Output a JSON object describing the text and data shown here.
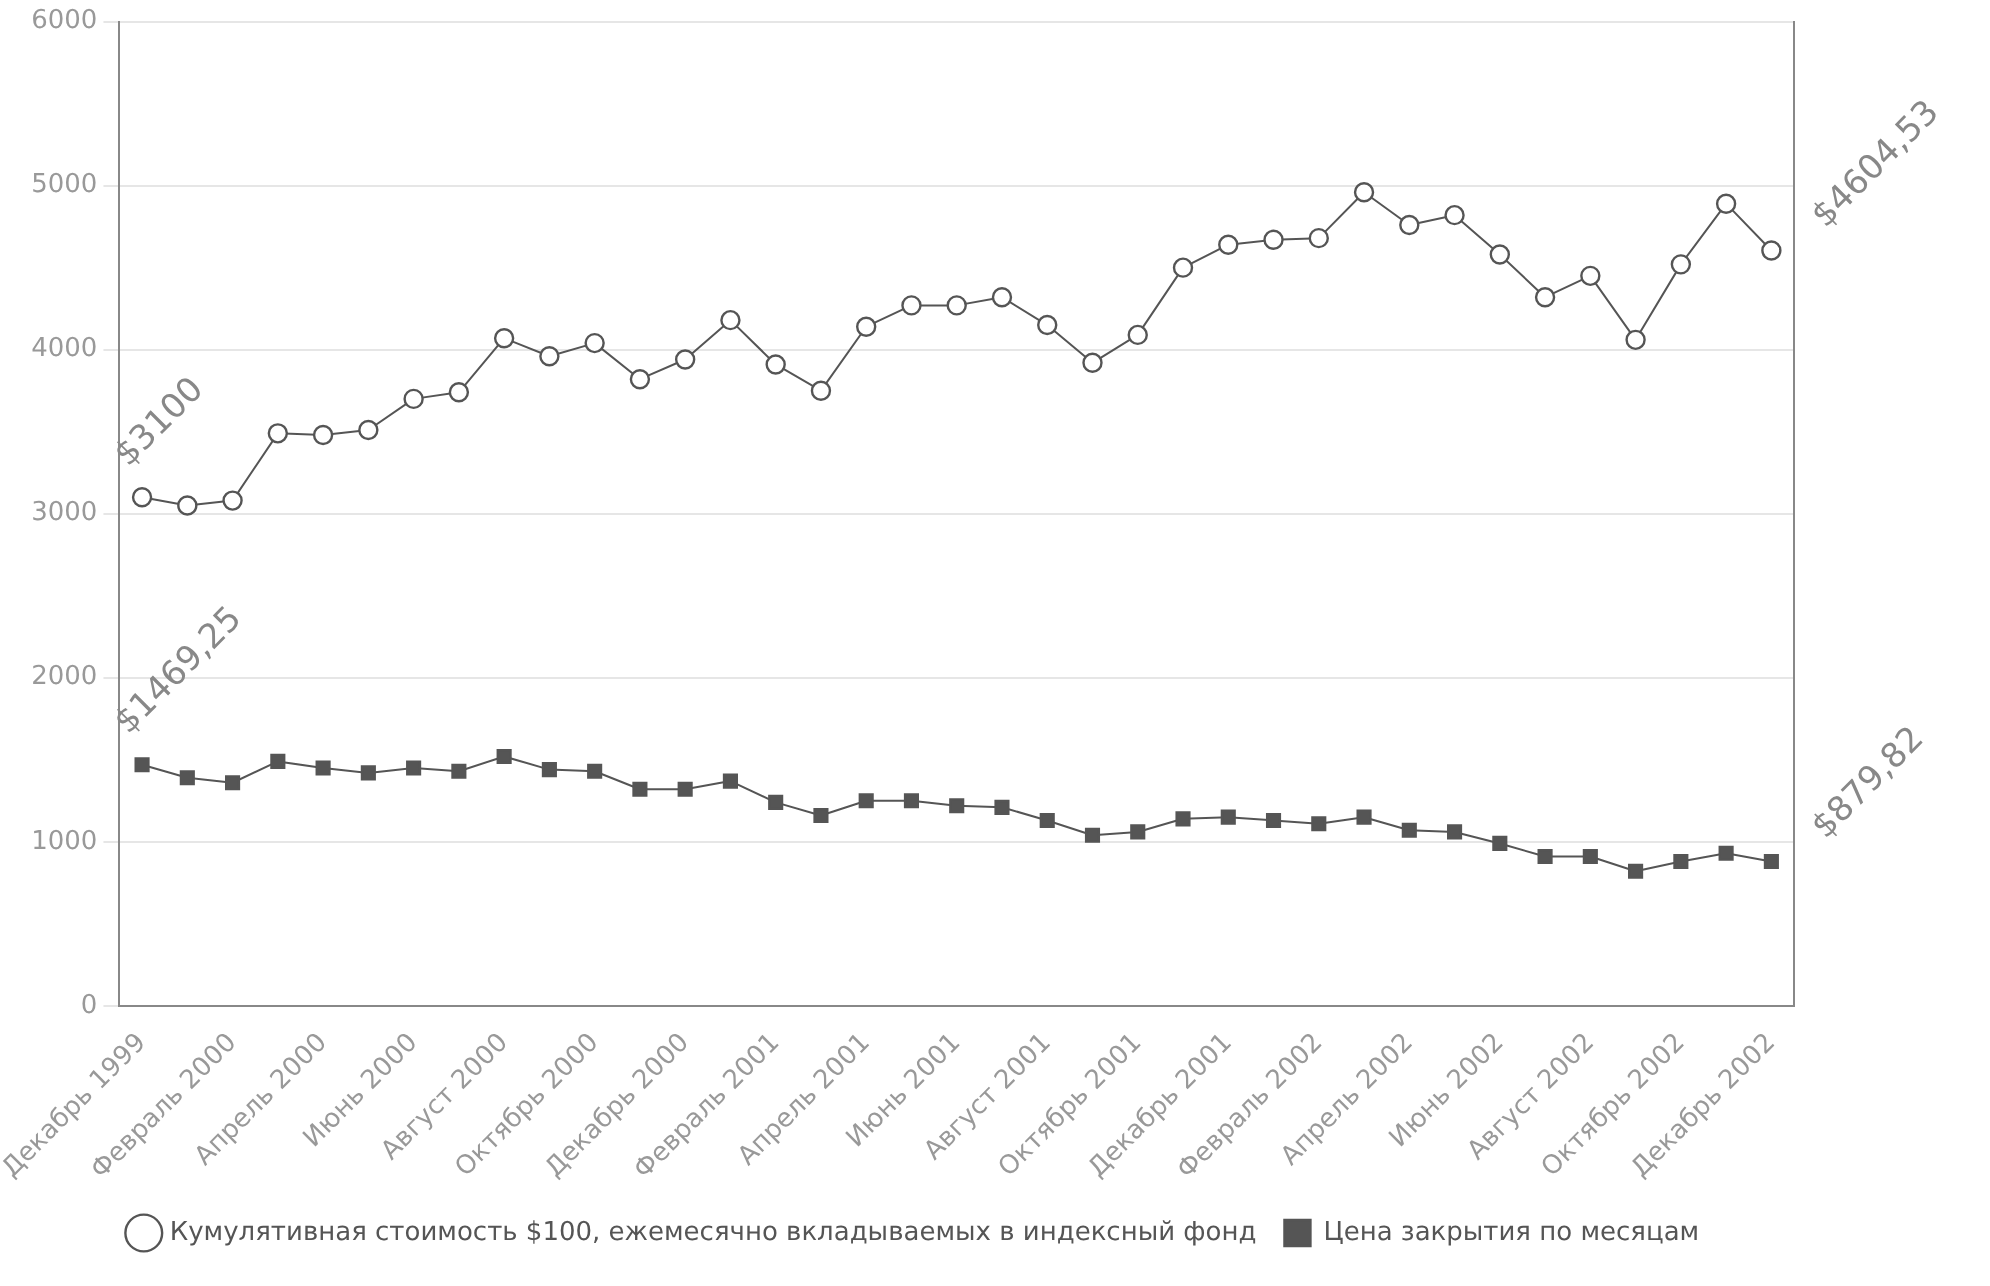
{
  "chart_data": {
    "type": "line",
    "categories": [
      "Декабрь 1999",
      null,
      "Февраль 2000",
      null,
      "Апрель 2000",
      null,
      "Июнь 2000",
      null,
      "Август 2000",
      null,
      "Октябрь 2000",
      null,
      "Декабрь 2000",
      null,
      "Февраль 2001",
      null,
      "Апрель 2001",
      null,
      "Июнь 2001",
      null,
      "Август 2001",
      null,
      "Октябрь 2001",
      null,
      "Декабрь 2001",
      null,
      "Февраль 2002",
      null,
      "Апрель 2002",
      null,
      "Июнь 2002",
      null,
      "Август 2002",
      null,
      "Октябрь 2002",
      null,
      "Декабрь 2002"
    ],
    "series": [
      {
        "name": "Кумулятивная стоимость $100, ежемесячно вкладываемых в индексный фонд",
        "color": "#555555",
        "marker": "circle",
        "values": [
          3100,
          3050,
          3080,
          3490,
          3480,
          3510,
          3700,
          3740,
          4070,
          3960,
          4040,
          3820,
          3940,
          4180,
          3910,
          3750,
          4140,
          4270,
          4270,
          4320,
          4150,
          3920,
          4090,
          4500,
          4640,
          4670,
          4680,
          4960,
          4760,
          4820,
          4580,
          4320,
          4450,
          4060,
          4520,
          4890,
          4604.53
        ],
        "value_labels": [
          "$3100",
          null,
          null,
          null,
          null,
          null,
          null,
          null,
          null,
          null,
          null,
          null,
          null,
          null,
          null,
          null,
          null,
          null,
          null,
          null,
          null,
          null,
          null,
          null,
          null,
          null,
          null,
          null,
          null,
          null,
          null,
          null,
          null,
          null,
          null,
          null,
          "$4604,53"
        ]
      },
      {
        "name": "Цена закрытия по месяцам",
        "color": "#555555",
        "marker": "square",
        "values": [
          1469.25,
          1390,
          1360,
          1490,
          1450,
          1420,
          1450,
          1430,
          1520,
          1440,
          1430,
          1320,
          1320,
          1370,
          1240,
          1160,
          1250,
          1250,
          1220,
          1210,
          1130,
          1040,
          1060,
          1140,
          1150,
          1130,
          1110,
          1150,
          1070,
          1060,
          990,
          910,
          910,
          820,
          880,
          930,
          879.82
        ],
        "value_labels": [
          "$1469,25",
          null,
          null,
          null,
          null,
          null,
          null,
          null,
          null,
          null,
          null,
          null,
          null,
          null,
          null,
          null,
          null,
          null,
          null,
          null,
          null,
          null,
          null,
          null,
          null,
          null,
          null,
          null,
          null,
          null,
          null,
          null,
          null,
          null,
          null,
          null,
          "$879,82"
        ]
      }
    ],
    "ylim": [
      0,
      6000
    ],
    "yticks": [
      0,
      1000,
      2000,
      3000,
      4000,
      5000,
      6000
    ],
    "grid": "y",
    "legend": "bottom"
  }
}
